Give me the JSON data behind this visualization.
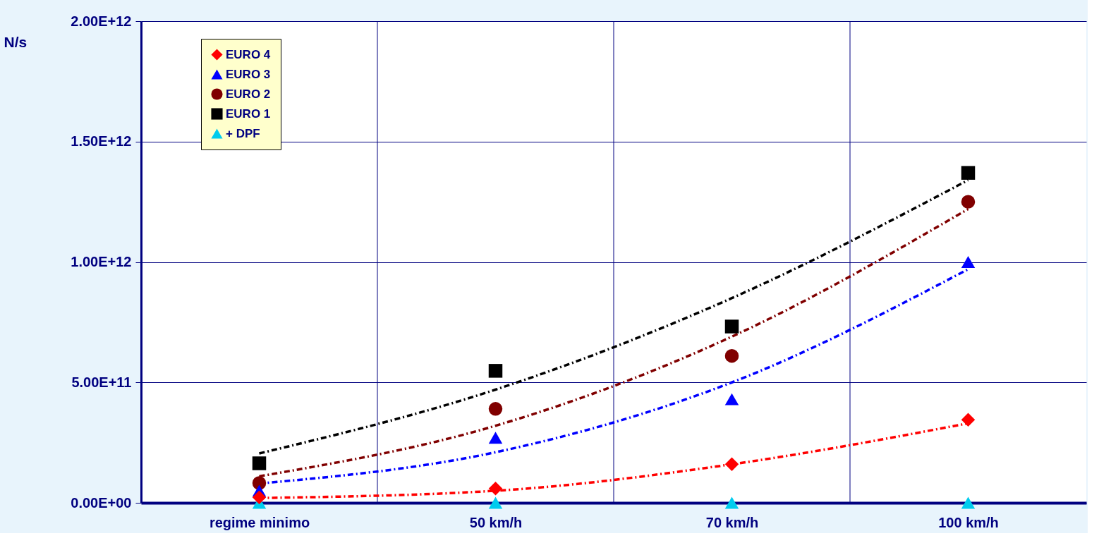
{
  "chart_data": {
    "type": "scatter",
    "ylabel": "N/s",
    "categories": [
      "regime minimo",
      "50 km/h",
      "70 km/h",
      "100 km/h"
    ],
    "series": [
      {
        "name": "EURO 4",
        "color": "#ff0000",
        "marker": "diamond",
        "values": [
          23000000000.0,
          59000000000.0,
          160000000000.0,
          345000000000.0
        ]
      },
      {
        "name": "EURO 3",
        "color": "#0000ff",
        "marker": "triangle",
        "values": [
          50000000000.0,
          270000000000.0,
          430000000000.0,
          1000000000000.0
        ]
      },
      {
        "name": "EURO 2",
        "color": "#800000",
        "marker": "circle",
        "values": [
          82000000000.0,
          390000000000.0,
          610000000000.0,
          1250000000000.0
        ]
      },
      {
        "name": "EURO 1",
        "color": "#000000",
        "marker": "square",
        "values": [
          164000000000.0,
          548000000000.0,
          732000000000.0,
          1370000000000.0
        ]
      },
      {
        "name": "+ DPF",
        "color": "#00ccee",
        "marker": "triangle",
        "values": [
          0,
          0,
          0,
          0
        ]
      },
      {
        "type": "line",
        "color": "#ff0000",
        "line_style": "dashed",
        "values": [
          20000000000.0,
          50000000000.0,
          160000000000.0,
          330000000000.0
        ]
      },
      {
        "type": "line",
        "color": "#0000ff",
        "line_style": "dashed",
        "values": [
          80000000000.0,
          210000000000.0,
          500000000000.0,
          970000000000.0
        ]
      },
      {
        "type": "line",
        "color": "#800000",
        "line_style": "dashed",
        "values": [
          110000000000.0,
          320000000000.0,
          690000000000.0,
          1220000000000.0
        ]
      },
      {
        "type": "line",
        "color": "#000000",
        "line_style": "dashed",
        "values": [
          205000000000.0,
          470000000000.0,
          850000000000.0,
          1340000000000.0
        ]
      }
    ],
    "ylim": [
      0,
      2000000000000.0
    ],
    "yticks": [
      {
        "value": 0,
        "label": "0.00E+00"
      },
      {
        "value": 500000000000.0,
        "label": "5.00E+11"
      },
      {
        "value": 1000000000000.0,
        "label": "1.00E+12"
      },
      {
        "value": 1500000000000.0,
        "label": "1.50E+12"
      },
      {
        "value": 2000000000000.0,
        "label": "2.00E+12"
      }
    ],
    "grid": true,
    "legend": "top left"
  }
}
